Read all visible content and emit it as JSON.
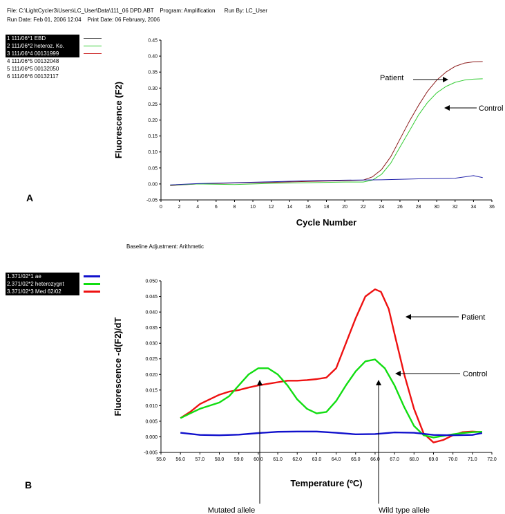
{
  "header": {
    "line1": "File: C:\\LightCycler3\\Users\\LC_User\\Data\\111_06 DPD.ABT    Program: Amplification      Run By: LC_User",
    "line2": "Run Date: Feb 01, 2006 12:04    Print Date: 06 February, 2006"
  },
  "baseline_note": "Baseline Adjustment: Arithmetic",
  "panel_labels": [
    "A",
    "B"
  ],
  "legend_a": [
    {
      "label": "1 111/06*1 EBD",
      "swatch": "#555555",
      "highlight": true
    },
    {
      "label": "2 111/06*2 heteroz. Ko.",
      "swatch": "#33cc33",
      "highlight": true
    },
    {
      "label": "3 111/06*4 00131999",
      "swatch": "#cc2222",
      "highlight": true
    },
    {
      "label": "4 111/06*5 00132048",
      "swatch": "",
      "highlight": false
    },
    {
      "label": "5 111/06*5 00132050",
      "swatch": "",
      "highlight": false
    },
    {
      "label": "6 111/06*6 00132117",
      "swatch": "",
      "highlight": false
    }
  ],
  "legend_b": [
    {
      "label": "1.371/02*1 ae",
      "swatch": "#1111cc"
    },
    {
      "label": "2.371/02*2 heterozygnt",
      "swatch": "#11dd11"
    },
    {
      "label": "3.371/02*3 Med 62/02",
      "swatch": "#ee1111"
    }
  ],
  "chart_data": [
    {
      "type": "line",
      "xlabel": "Cycle Number",
      "ylabel": "Fluorescence (F2)",
      "xlim": [
        0,
        36
      ],
      "ylim": [
        -0.05,
        0.45
      ],
      "xticks": [
        "0",
        "2",
        "4",
        "6",
        "8",
        "10",
        "12",
        "14",
        "16",
        "18",
        "20",
        "22",
        "24",
        "26",
        "28",
        "30",
        "32",
        "34",
        "36"
      ],
      "yticks": [
        "-0.05",
        "0.00",
        "0.05",
        "0.10",
        "0.15",
        "0.20",
        "0.25",
        "0.30",
        "0.35",
        "0.40",
        "0.45"
      ],
      "annotations": [
        "Patient",
        "Control"
      ],
      "series": [
        {
          "color": "#8b1a1a",
          "x": [
            1,
            4,
            8,
            12,
            16,
            20,
            22,
            23,
            24,
            25,
            26,
            27,
            28,
            29,
            30,
            31,
            32,
            33,
            34,
            35
          ],
          "y": [
            -0.005,
            0.0,
            0.003,
            0.005,
            0.008,
            0.01,
            0.012,
            0.022,
            0.045,
            0.085,
            0.14,
            0.195,
            0.245,
            0.29,
            0.325,
            0.35,
            0.368,
            0.378,
            0.382,
            0.383
          ]
        },
        {
          "color": "#33cc33",
          "x": [
            1,
            4,
            8,
            12,
            16,
            20,
            22,
            23,
            24,
            25,
            26,
            27,
            28,
            29,
            30,
            31,
            32,
            33,
            34,
            35
          ],
          "y": [
            -0.004,
            0.0,
            -0.002,
            0.002,
            0.004,
            0.006,
            0.006,
            0.012,
            0.03,
            0.065,
            0.115,
            0.165,
            0.215,
            0.255,
            0.285,
            0.305,
            0.318,
            0.325,
            0.328,
            0.329
          ]
        },
        {
          "color": "#2222aa",
          "x": [
            1,
            4,
            8,
            12,
            16,
            20,
            24,
            28,
            32,
            34,
            35
          ],
          "y": [
            -0.003,
            0.001,
            0.004,
            0.007,
            0.01,
            0.012,
            0.013,
            0.016,
            0.018,
            0.026,
            0.02
          ]
        }
      ]
    },
    {
      "type": "line",
      "xlabel": "Temperature (ºC)",
      "ylabel": "Fluorescence -d(F2)/dT",
      "xlim": [
        55,
        72
      ],
      "ylim": [
        -0.005,
        0.05
      ],
      "xticks": [
        "55.0",
        "56.0",
        "57.0",
        "58.0",
        "59.0",
        "60.0",
        "61.0",
        "62.0",
        "63.0",
        "64.0",
        "65.0",
        "66.0",
        "67.0",
        "68.0",
        "69.0",
        "70.0",
        "71.0",
        "72.0"
      ],
      "yticks": [
        "-0.005",
        "0.000",
        "0.005",
        "0.010",
        "0.015",
        "0.020",
        "0.025",
        "0.030",
        "0.035",
        "0.040",
        "0.045",
        "0.050"
      ],
      "annotations": [
        "Patient",
        "Control",
        "Mutated allele",
        "Wild type allele"
      ],
      "series": [
        {
          "color": "#ee1111",
          "x": [
            56,
            56.5,
            57,
            57.5,
            58,
            58.5,
            59,
            59.5,
            60,
            60.5,
            61,
            61.5,
            62,
            62.5,
            63,
            63.5,
            64,
            64.5,
            65,
            65.5,
            66,
            66.3,
            66.7,
            67,
            67.5,
            68,
            68.5,
            69,
            69.5,
            70,
            70.5,
            71,
            71.5
          ],
          "y": [
            0.006,
            0.008,
            0.0105,
            0.012,
            0.0135,
            0.0145,
            0.015,
            0.0158,
            0.0165,
            0.017,
            0.0175,
            0.018,
            0.018,
            0.0182,
            0.0185,
            0.019,
            0.022,
            0.03,
            0.038,
            0.045,
            0.0473,
            0.0465,
            0.041,
            0.033,
            0.02,
            0.009,
            0.001,
            -0.0018,
            -0.001,
            0.0005,
            0.0015,
            0.0017,
            0.0015
          ]
        },
        {
          "color": "#11dd11",
          "x": [
            56,
            56.5,
            57,
            57.5,
            58,
            58.5,
            59,
            59.5,
            60,
            60.5,
            61,
            61.5,
            62,
            62.5,
            63,
            63.5,
            64,
            64.5,
            65,
            65.5,
            66,
            66.5,
            67,
            67.5,
            68,
            68.5,
            69,
            69.5,
            70,
            70.5,
            71,
            71.5
          ],
          "y": [
            0.006,
            0.0075,
            0.009,
            0.01,
            0.011,
            0.013,
            0.0165,
            0.02,
            0.022,
            0.022,
            0.02,
            0.0165,
            0.012,
            0.009,
            0.0075,
            0.008,
            0.0115,
            0.0165,
            0.021,
            0.0242,
            0.0248,
            0.022,
            0.0165,
            0.0095,
            0.0035,
            0.0005,
            -0.0002,
            0.0003,
            0.0008,
            0.0012,
            0.0015,
            0.0016
          ]
        },
        {
          "color": "#1111cc",
          "x": [
            56,
            57,
            58,
            59,
            60,
            61,
            62,
            63,
            64,
            65,
            66,
            67,
            68,
            69,
            70,
            71,
            71.5
          ],
          "y": [
            0.0013,
            0.0006,
            0.0005,
            0.0007,
            0.0012,
            0.0016,
            0.0017,
            0.0017,
            0.0013,
            0.0008,
            0.0009,
            0.0014,
            0.0013,
            0.0006,
            0.0005,
            0.0006,
            0.0012
          ]
        }
      ]
    }
  ]
}
